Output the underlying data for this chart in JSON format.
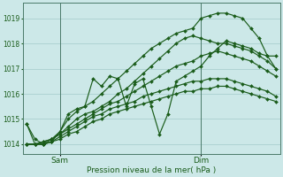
{
  "background_color": "#cce8e8",
  "grid_color": "#aacfcf",
  "line_color": "#1a5c1a",
  "marker_color": "#1a5c1a",
  "title": "Pression niveau de la mer( hPa )",
  "xlabel_sam": "Sam",
  "xlabel_dim": "Dim",
  "ylim": [
    1013.6,
    1019.6
  ],
  "yticks": [
    1014,
    1015,
    1016,
    1017,
    1018,
    1019
  ],
  "series": {
    "line1": [
      1014.8,
      1014.0,
      1014.0,
      1014.2,
      1014.5,
      1015.0,
      1015.3,
      1015.5,
      1015.7,
      1016.0,
      1016.3,
      1016.6,
      1016.9,
      1017.2,
      1017.5,
      1017.8,
      1018.0,
      1018.2,
      1018.4,
      1018.5,
      1018.6,
      1019.0,
      1019.1,
      1019.2,
      1019.2,
      1019.1,
      1019.0,
      1018.6,
      1018.2,
      1017.5,
      1017.0
    ],
    "line2": [
      1014.0,
      1014.0,
      1014.1,
      1014.2,
      1014.4,
      1014.7,
      1015.0,
      1015.2,
      1015.3,
      1015.5,
      1015.7,
      1016.0,
      1016.2,
      1016.5,
      1016.8,
      1017.1,
      1017.4,
      1017.7,
      1018.0,
      1018.2,
      1018.3,
      1018.2,
      1018.1,
      1018.0,
      1018.0,
      1017.9,
      1017.8,
      1017.7,
      1017.5,
      1017.3,
      1017.0
    ],
    "line3": [
      1014.0,
      1014.0,
      1014.1,
      1014.2,
      1014.4,
      1014.6,
      1014.8,
      1015.0,
      1015.2,
      1015.4,
      1015.6,
      1015.7,
      1015.9,
      1016.1,
      1016.3,
      1016.5,
      1016.7,
      1016.9,
      1017.1,
      1017.2,
      1017.3,
      1017.5,
      1017.6,
      1017.7,
      1017.6,
      1017.5,
      1017.4,
      1017.3,
      1017.1,
      1016.9,
      1016.7
    ],
    "line4": [
      1014.0,
      1014.0,
      1014.0,
      1014.1,
      1014.3,
      1014.5,
      1014.7,
      1014.9,
      1015.1,
      1015.2,
      1015.4,
      1015.5,
      1015.6,
      1015.7,
      1015.9,
      1016.0,
      1016.1,
      1016.2,
      1016.3,
      1016.4,
      1016.5,
      1016.5,
      1016.6,
      1016.6,
      1016.6,
      1016.5,
      1016.4,
      1016.3,
      1016.2,
      1016.1,
      1015.9
    ],
    "line5": [
      1014.0,
      1014.0,
      1014.0,
      1014.1,
      1014.2,
      1014.4,
      1014.5,
      1014.7,
      1014.9,
      1015.0,
      1015.2,
      1015.3,
      1015.4,
      1015.5,
      1015.6,
      1015.7,
      1015.8,
      1015.9,
      1016.0,
      1016.1,
      1016.1,
      1016.2,
      1016.2,
      1016.3,
      1016.3,
      1016.2,
      1016.1,
      1016.0,
      1015.9,
      1015.8,
      1015.7
    ],
    "line_wild": [
      1014.8,
      1014.2,
      1014.0,
      1014.1,
      1014.5,
      1015.2,
      1015.4,
      1015.5,
      1016.6,
      1016.3,
      1016.7,
      1016.6,
      1015.5,
      1016.4,
      1016.6,
      1015.5,
      1014.4,
      1015.2,
      1016.5,
      1016.7,
      1016.9,
      1017.1,
      1017.5,
      1017.8,
      1018.1,
      1018.0,
      1017.9,
      1017.8,
      1017.6,
      1017.5,
      1017.5
    ]
  },
  "n_points": 31,
  "vline_x_sam": 4,
  "vline_x_dim": 21
}
